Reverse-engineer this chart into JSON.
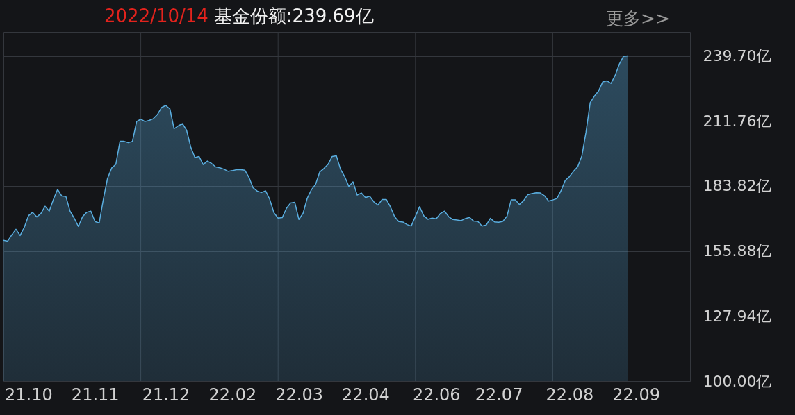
{
  "chart_data": {
    "type": "area",
    "title": "2022/10/14",
    "subtitle": "基金份额:239.69亿",
    "annotations": [
      "更多>>"
    ],
    "categories": [
      null,
      null,
      null,
      null,
      null,
      null,
      "21.10",
      null,
      null,
      null,
      null,
      null,
      null,
      null,
      null,
      null,
      null,
      null,
      null,
      null,
      null,
      null,
      "21.11",
      null,
      null,
      null,
      null,
      null,
      null,
      null,
      null,
      null,
      null,
      null,
      null,
      null,
      null,
      null,
      null,
      "21.12",
      null,
      null,
      null,
      null,
      null,
      null,
      null,
      null,
      null,
      null,
      null,
      null,
      null,
      null,
      null,
      "22.02",
      null,
      null,
      null,
      null,
      null,
      null,
      null,
      null,
      null,
      null,
      null,
      null,
      null,
      null,
      null,
      "22.03",
      null,
      null,
      null,
      null,
      null,
      null,
      null,
      null,
      null,
      null,
      null,
      null,
      null,
      null,
      null,
      "22.04",
      null,
      null,
      null,
      null,
      null,
      null,
      null,
      null,
      null,
      null,
      null,
      null,
      null,
      null,
      null,
      null,
      "22.06",
      null,
      null,
      null,
      null,
      null,
      null,
      null,
      null,
      null,
      null,
      null,
      null,
      null,
      null,
      "22.07",
      null,
      null,
      null,
      null,
      null,
      null,
      null,
      null,
      null,
      null,
      null,
      null,
      null,
      null,
      null,
      null,
      "22.08",
      null,
      null,
      null,
      null,
      null,
      null,
      null,
      null,
      null,
      null,
      null,
      null,
      null,
      null,
      null,
      "22.09",
      null,
      null,
      null,
      null,
      null,
      null,
      null,
      null,
      null,
      null,
      null,
      null,
      null
    ],
    "series": [
      {
        "color": "#5aaee0",
        "values": [
          160.5,
          160.1,
          162.8,
          165.2,
          162.5,
          166.0,
          171.0,
          172.5,
          170.5,
          172.0,
          175.1,
          173.0,
          178.0,
          182.3,
          179.5,
          179.3,
          173.0,
          170.0,
          166.4,
          170.6,
          172.5,
          173.0,
          168.5,
          167.9,
          178.0,
          187.0,
          191.5,
          193.1,
          203.0,
          203.0,
          202.4,
          203.0,
          211.5,
          212.5,
          211.5,
          212.0,
          212.7,
          214.5,
          217.5,
          218.4,
          216.9,
          208.4,
          209.6,
          210.6,
          207.8,
          200.6,
          196.0,
          196.5,
          193.0,
          194.5,
          193.5,
          192.0,
          191.6,
          191.0,
          190.1,
          190.4,
          190.8,
          190.8,
          190.6,
          187.5,
          183.0,
          181.6,
          181.0,
          181.7,
          178.0,
          172.3,
          170.0,
          170.2,
          174.2,
          176.5,
          176.8,
          169.4,
          172.1,
          178.5,
          182.2,
          184.5,
          189.8,
          191.3,
          193.1,
          196.5,
          196.8,
          191.0,
          187.8,
          183.6,
          185.6,
          179.9,
          180.8,
          178.8,
          179.4,
          177.0,
          175.6,
          178.0,
          178.0,
          174.8,
          170.6,
          168.5,
          168.3,
          167.2,
          166.6,
          170.8,
          174.9,
          171.0,
          169.5,
          170.0,
          169.7,
          172.0,
          173.0,
          170.6,
          169.4,
          169.2,
          168.9,
          169.8,
          170.3,
          168.7,
          168.6,
          166.6,
          167.0,
          169.9,
          168.4,
          168.2,
          168.6,
          170.8,
          177.8,
          177.8,
          175.8,
          177.5,
          180.1,
          180.5,
          180.9,
          180.8,
          179.6,
          177.3,
          177.8,
          178.4,
          181.8,
          186.2,
          187.8,
          190.1,
          192.1,
          196.8,
          207.0,
          219.6,
          222.4,
          224.6,
          228.5,
          229.0,
          227.9,
          231.3,
          236.2,
          239.5,
          239.69,
          null,
          null,
          null,
          null,
          null,
          null,
          null,
          null,
          null,
          null,
          null,
          null,
          null,
          null,
          null
        ]
      }
    ],
    "ylim": [
      100,
      250
    ],
    "yticks": [
      {
        "value": 100,
        "label": "100.00亿"
      },
      {
        "value": 127.94,
        "label": "127.94亿"
      },
      {
        "value": 155.88,
        "label": "155.88亿"
      },
      {
        "value": 183.82,
        "label": "183.82亿"
      },
      {
        "value": 211.76,
        "label": "211.76亿"
      },
      {
        "value": 239.7,
        "label": "239.70亿"
      }
    ],
    "grid": true
  }
}
